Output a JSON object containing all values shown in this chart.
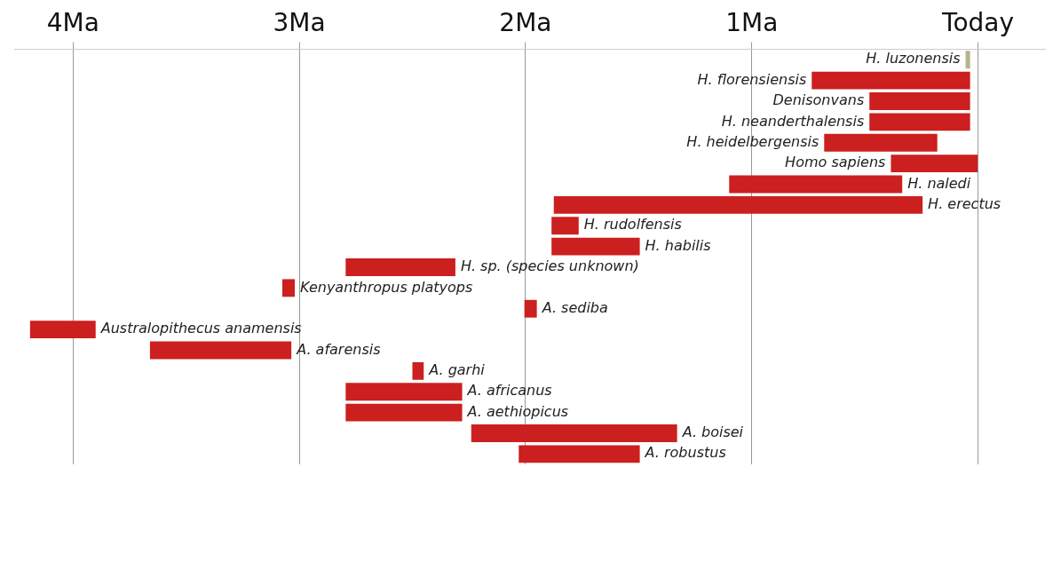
{
  "chart_data": {
    "type": "bar",
    "orientation": "horizontal",
    "tick_labels": "x",
    "grid": "x",
    "categories": [
      "H. luzonensis",
      "H. florensiensis",
      "Denisonvans",
      "H. neanderthalensis",
      "H. heidelbergensis",
      "Homo sapiens",
      "H. naledi",
      "H. erectus",
      "H. rudolfensis",
      "H. habilis",
      "H. sp. (species unknown)",
      "Kenyanthropus platyops",
      "A. sediba",
      "Australopithecus anamensis",
      "A. afarensis",
      "A. garhi",
      "A. africanus",
      "A. aethiopicus",
      "A. boisei",
      "A. robustus"
    ],
    "base": [
      0.035,
      0.035,
      0.035,
      0.035,
      0.18,
      0,
      0.335,
      0.245,
      1.765,
      1.495,
      2.31,
      3.02,
      1.95,
      3.9,
      3.035,
      2.45,
      2.28,
      2.28,
      1.33,
      1.495
    ],
    "values": [
      0.02,
      0.7,
      0.445,
      0.445,
      0.5,
      0.385,
      0.765,
      1.63,
      0.12,
      0.39,
      0.485,
      0.055,
      0.055,
      0.29,
      0.625,
      0.05,
      0.515,
      0.515,
      0.91,
      0.535
    ],
    "colors": [
      "#b5b58a",
      "#cc1f1f",
      "#cc1f1f",
      "#cc1f1f",
      "#cc1f1f",
      "#cc1f1f",
      "#cc1f1f",
      "#cc1f1f",
      "#cc1f1f",
      "#cc1f1f",
      "#cc1f1f",
      "#cc1f1f",
      "#cc1f1f",
      "#cc1f1f",
      "#cc1f1f",
      "#cc1f1f",
      "#cc1f1f",
      "#cc1f1f",
      "#cc1f1f",
      "#cc1f1f"
    ],
    "xlim": [
      4.26,
      -0.3
    ],
    "xticks": [
      {
        "value": 4,
        "label": "4Ma"
      },
      {
        "value": 3,
        "label": "3Ma"
      },
      {
        "value": 2,
        "label": "2Ma"
      },
      {
        "value": 1,
        "label": "1Ma"
      },
      {
        "value": 0,
        "label": "Today"
      }
    ]
  }
}
